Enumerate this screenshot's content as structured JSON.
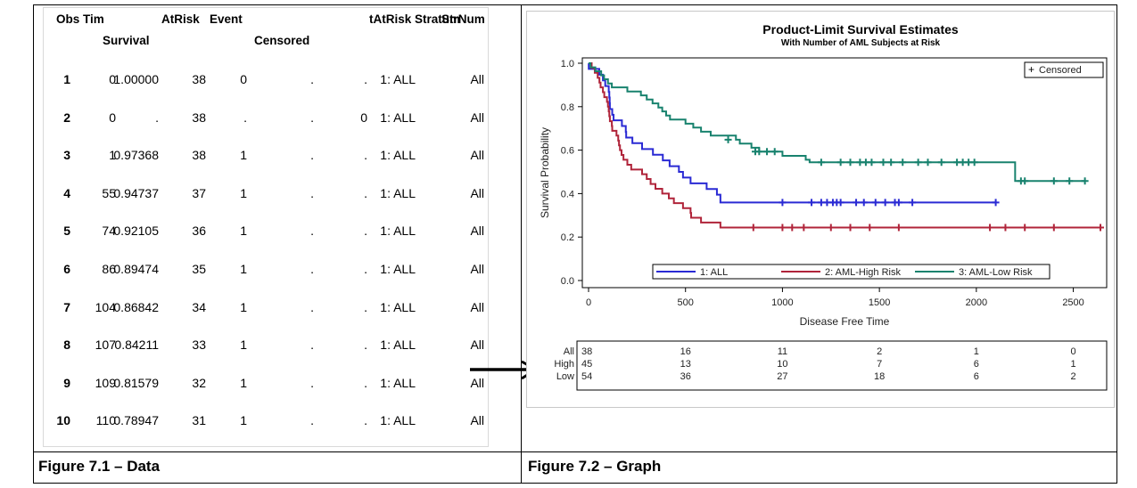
{
  "captions": {
    "left": "Figure 7.1 – Data",
    "right": "Figure 7.2 – Graph"
  },
  "table": {
    "headers": {
      "obs": "Obs",
      "tim": "Tim",
      "survival": "Survival",
      "atrisk": "AtRisk",
      "event": "Event",
      "censored": "Censored",
      "tatrisk": "tAtRisk",
      "stratum": "Stratum",
      "strnum": "StrNum"
    },
    "rows": [
      {
        "obs": "1",
        "tim": "0",
        "survival": "1.00000",
        "atrisk": "38",
        "event": "0",
        "censored": ".",
        "tatrisk": ".",
        "stratum": "1: ALL",
        "strnum": "All"
      },
      {
        "obs": "2",
        "tim": "0",
        "survival": ".",
        "atrisk": "38",
        "event": ".",
        "censored": ".",
        "tatrisk": "0",
        "stratum": "1: ALL",
        "strnum": "All"
      },
      {
        "obs": "3",
        "tim": "1",
        "survival": "0.97368",
        "atrisk": "38",
        "event": "1",
        "censored": ".",
        "tatrisk": ".",
        "stratum": "1: ALL",
        "strnum": "All"
      },
      {
        "obs": "4",
        "tim": "55",
        "survival": "0.94737",
        "atrisk": "37",
        "event": "1",
        "censored": ".",
        "tatrisk": ".",
        "stratum": "1: ALL",
        "strnum": "All"
      },
      {
        "obs": "5",
        "tim": "74",
        "survival": "0.92105",
        "atrisk": "36",
        "event": "1",
        "censored": ".",
        "tatrisk": ".",
        "stratum": "1: ALL",
        "strnum": "All"
      },
      {
        "obs": "6",
        "tim": "86",
        "survival": "0.89474",
        "atrisk": "35",
        "event": "1",
        "censored": ".",
        "tatrisk": ".",
        "stratum": "1: ALL",
        "strnum": "All"
      },
      {
        "obs": "7",
        "tim": "104",
        "survival": "0.86842",
        "atrisk": "34",
        "event": "1",
        "censored": ".",
        "tatrisk": ".",
        "stratum": "1: ALL",
        "strnum": "All"
      },
      {
        "obs": "8",
        "tim": "107",
        "survival": "0.84211",
        "atrisk": "33",
        "event": "1",
        "censored": ".",
        "tatrisk": ".",
        "stratum": "1: ALL",
        "strnum": "All"
      },
      {
        "obs": "9",
        "tim": "109",
        "survival": "0.81579",
        "atrisk": "32",
        "event": "1",
        "censored": ".",
        "tatrisk": ".",
        "stratum": "1: ALL",
        "strnum": "All"
      },
      {
        "obs": "10",
        "tim": "110",
        "survival": "0.78947",
        "atrisk": "31",
        "event": "1",
        "censored": ".",
        "tatrisk": ".",
        "stratum": "1: ALL",
        "strnum": "All"
      }
    ]
  },
  "chart_data": {
    "type": "line",
    "title": "Product-Limit Survival Estimates",
    "subtitle": "With Number of AML Subjects at Risk",
    "xlabel": "Disease Free Time",
    "ylabel": "Survival Probability",
    "xlim": [
      0,
      2640
    ],
    "ylim": [
      0,
      1.0
    ],
    "xticks": [
      0,
      500,
      1000,
      1500,
      2000,
      2500
    ],
    "yticks": [
      0.0,
      0.2,
      0.4,
      0.6,
      0.8,
      1.0
    ],
    "xtick_labels": [
      "0",
      "500",
      "1000",
      "1500",
      "2000",
      "2500"
    ],
    "ytick_labels": [
      "0.0",
      "0.2",
      "0.4",
      "0.6",
      "0.8",
      "1.0"
    ],
    "grid": false,
    "censor_legend": "Censored",
    "censor_symbol": "+",
    "legend_position": "bottom-inside",
    "series": [
      {
        "name": "1: ALL",
        "color": "#2a2ad4",
        "steps": [
          [
            0,
            1.0
          ],
          [
            1,
            0.974
          ],
          [
            55,
            0.947
          ],
          [
            74,
            0.921
          ],
          [
            86,
            0.895
          ],
          [
            104,
            0.868
          ],
          [
            107,
            0.842
          ],
          [
            109,
            0.816
          ],
          [
            110,
            0.789
          ],
          [
            122,
            0.763
          ],
          [
            129,
            0.737
          ],
          [
            172,
            0.711
          ],
          [
            192,
            0.684
          ],
          [
            194,
            0.658
          ],
          [
            226,
            0.632
          ],
          [
            276,
            0.605
          ],
          [
            332,
            0.579
          ],
          [
            383,
            0.553
          ],
          [
            418,
            0.526
          ],
          [
            466,
            0.5
          ],
          [
            487,
            0.474
          ],
          [
            526,
            0.447
          ],
          [
            609,
            0.421
          ],
          [
            662,
            0.395
          ],
          [
            680,
            0.359
          ]
        ],
        "end": 2100,
        "censored": [
          [
            1000,
            0.359
          ],
          [
            1150,
            0.359
          ],
          [
            1200,
            0.359
          ],
          [
            1230,
            0.359
          ],
          [
            1260,
            0.359
          ],
          [
            1280,
            0.359
          ],
          [
            1300,
            0.359
          ],
          [
            1380,
            0.359
          ],
          [
            1420,
            0.359
          ],
          [
            1480,
            0.359
          ],
          [
            1530,
            0.359
          ],
          [
            1580,
            0.359
          ],
          [
            1600,
            0.359
          ],
          [
            1670,
            0.359
          ],
          [
            2100,
            0.359
          ]
        ]
      },
      {
        "name": "2: AML-High Risk",
        "color": "#b0243a",
        "steps": [
          [
            0,
            1.0
          ],
          [
            16,
            0.978
          ],
          [
            32,
            0.956
          ],
          [
            47,
            0.933
          ],
          [
            56,
            0.911
          ],
          [
            62,
            0.889
          ],
          [
            74,
            0.867
          ],
          [
            81,
            0.844
          ],
          [
            95,
            0.822
          ],
          [
            100,
            0.8
          ],
          [
            104,
            0.778
          ],
          [
            107,
            0.756
          ],
          [
            110,
            0.733
          ],
          [
            120,
            0.711
          ],
          [
            122,
            0.689
          ],
          [
            144,
            0.667
          ],
          [
            153,
            0.644
          ],
          [
            157,
            0.622
          ],
          [
            162,
            0.6
          ],
          [
            170,
            0.578
          ],
          [
            180,
            0.556
          ],
          [
            200,
            0.533
          ],
          [
            220,
            0.511
          ],
          [
            276,
            0.489
          ],
          [
            300,
            0.467
          ],
          [
            320,
            0.444
          ],
          [
            345,
            0.422
          ],
          [
            380,
            0.4
          ],
          [
            414,
            0.378
          ],
          [
            440,
            0.356
          ],
          [
            487,
            0.333
          ],
          [
            526,
            0.311
          ],
          [
            529,
            0.289
          ],
          [
            580,
            0.267
          ],
          [
            680,
            0.244
          ]
        ],
        "end": 2640,
        "censored": [
          [
            850,
            0.244
          ],
          [
            1000,
            0.244
          ],
          [
            1050,
            0.244
          ],
          [
            1110,
            0.244
          ],
          [
            1250,
            0.244
          ],
          [
            1350,
            0.244
          ],
          [
            1450,
            0.244
          ],
          [
            1600,
            0.244
          ],
          [
            2070,
            0.244
          ],
          [
            2150,
            0.244
          ],
          [
            2250,
            0.244
          ],
          [
            2400,
            0.244
          ],
          [
            2640,
            0.244
          ]
        ]
      },
      {
        "name": "3: AML-Low Risk",
        "color": "#18826e",
        "steps": [
          [
            0,
            1.0
          ],
          [
            10,
            0.981
          ],
          [
            35,
            0.963
          ],
          [
            65,
            0.944
          ],
          [
            80,
            0.926
          ],
          [
            100,
            0.907
          ],
          [
            120,
            0.889
          ],
          [
            200,
            0.87
          ],
          [
            270,
            0.852
          ],
          [
            300,
            0.833
          ],
          [
            330,
            0.815
          ],
          [
            360,
            0.796
          ],
          [
            380,
            0.778
          ],
          [
            400,
            0.759
          ],
          [
            420,
            0.741
          ],
          [
            500,
            0.722
          ],
          [
            540,
            0.704
          ],
          [
            580,
            0.685
          ],
          [
            630,
            0.667
          ],
          [
            760,
            0.648
          ],
          [
            780,
            0.63
          ],
          [
            840,
            0.611
          ],
          [
            880,
            0.593
          ],
          [
            1000,
            0.574
          ],
          [
            1120,
            0.556
          ],
          [
            1140,
            0.544
          ],
          [
            2200,
            0.458
          ]
        ],
        "end": 2560,
        "censored": [
          [
            720,
            0.648
          ],
          [
            860,
            0.593
          ],
          [
            880,
            0.593
          ],
          [
            920,
            0.593
          ],
          [
            960,
            0.593
          ],
          [
            1200,
            0.544
          ],
          [
            1300,
            0.544
          ],
          [
            1350,
            0.544
          ],
          [
            1400,
            0.544
          ],
          [
            1430,
            0.544
          ],
          [
            1460,
            0.544
          ],
          [
            1520,
            0.544
          ],
          [
            1560,
            0.544
          ],
          [
            1620,
            0.544
          ],
          [
            1700,
            0.544
          ],
          [
            1750,
            0.544
          ],
          [
            1820,
            0.544
          ],
          [
            1900,
            0.544
          ],
          [
            1930,
            0.544
          ],
          [
            1960,
            0.544
          ],
          [
            1990,
            0.544
          ],
          [
            2230,
            0.458
          ],
          [
            2250,
            0.458
          ],
          [
            2400,
            0.458
          ],
          [
            2480,
            0.458
          ],
          [
            2560,
            0.458
          ]
        ]
      }
    ],
    "at_risk": {
      "x": [
        0,
        500,
        1000,
        1500,
        2000,
        2500
      ],
      "rows": [
        {
          "label": "All",
          "values": [
            "38",
            "16",
            "11",
            "2",
            "1",
            "0"
          ]
        },
        {
          "label": "High",
          "values": [
            "45",
            "13",
            "10",
            "7",
            "6",
            "1"
          ]
        },
        {
          "label": "Low",
          "values": [
            "54",
            "36",
            "27",
            "18",
            "6",
            "2"
          ]
        }
      ]
    }
  }
}
